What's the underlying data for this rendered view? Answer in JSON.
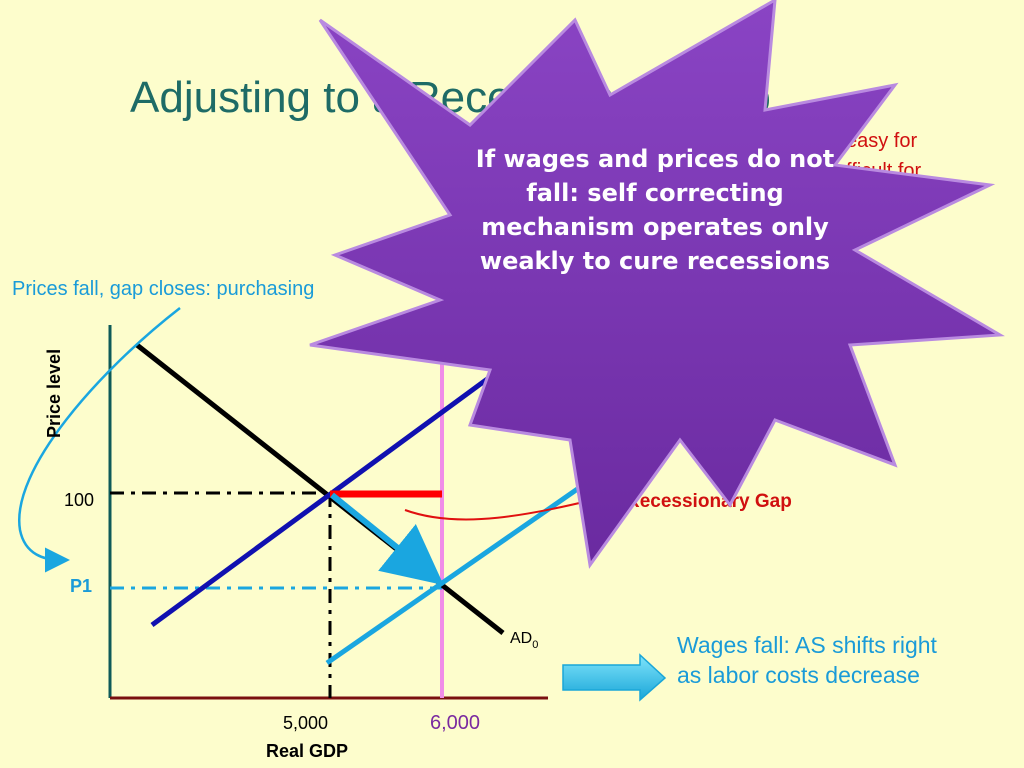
{
  "title": "Adjusting to a Recessionary Gap",
  "note_lines": [
    "easy for",
    "fficult for"
  ],
  "prices_note": "Prices fall, gap closes: purchasing",
  "star_text": "If wages and prices do not fall: self correcting mechanism operates only weakly to cure recessions",
  "graph": {
    "y_axis_label": "Price level",
    "x_axis_label": "Real GDP",
    "price_100": "100",
    "price_p1": "P1",
    "gdp_5000": "5,000",
    "gdp_6000": "6,000",
    "ad_label": "AD",
    "ad_subscript": "0",
    "gap_label": "Recessionary Gap"
  },
  "wages_note": "Wages fall: AS shifts right as labor costs decrease"
}
